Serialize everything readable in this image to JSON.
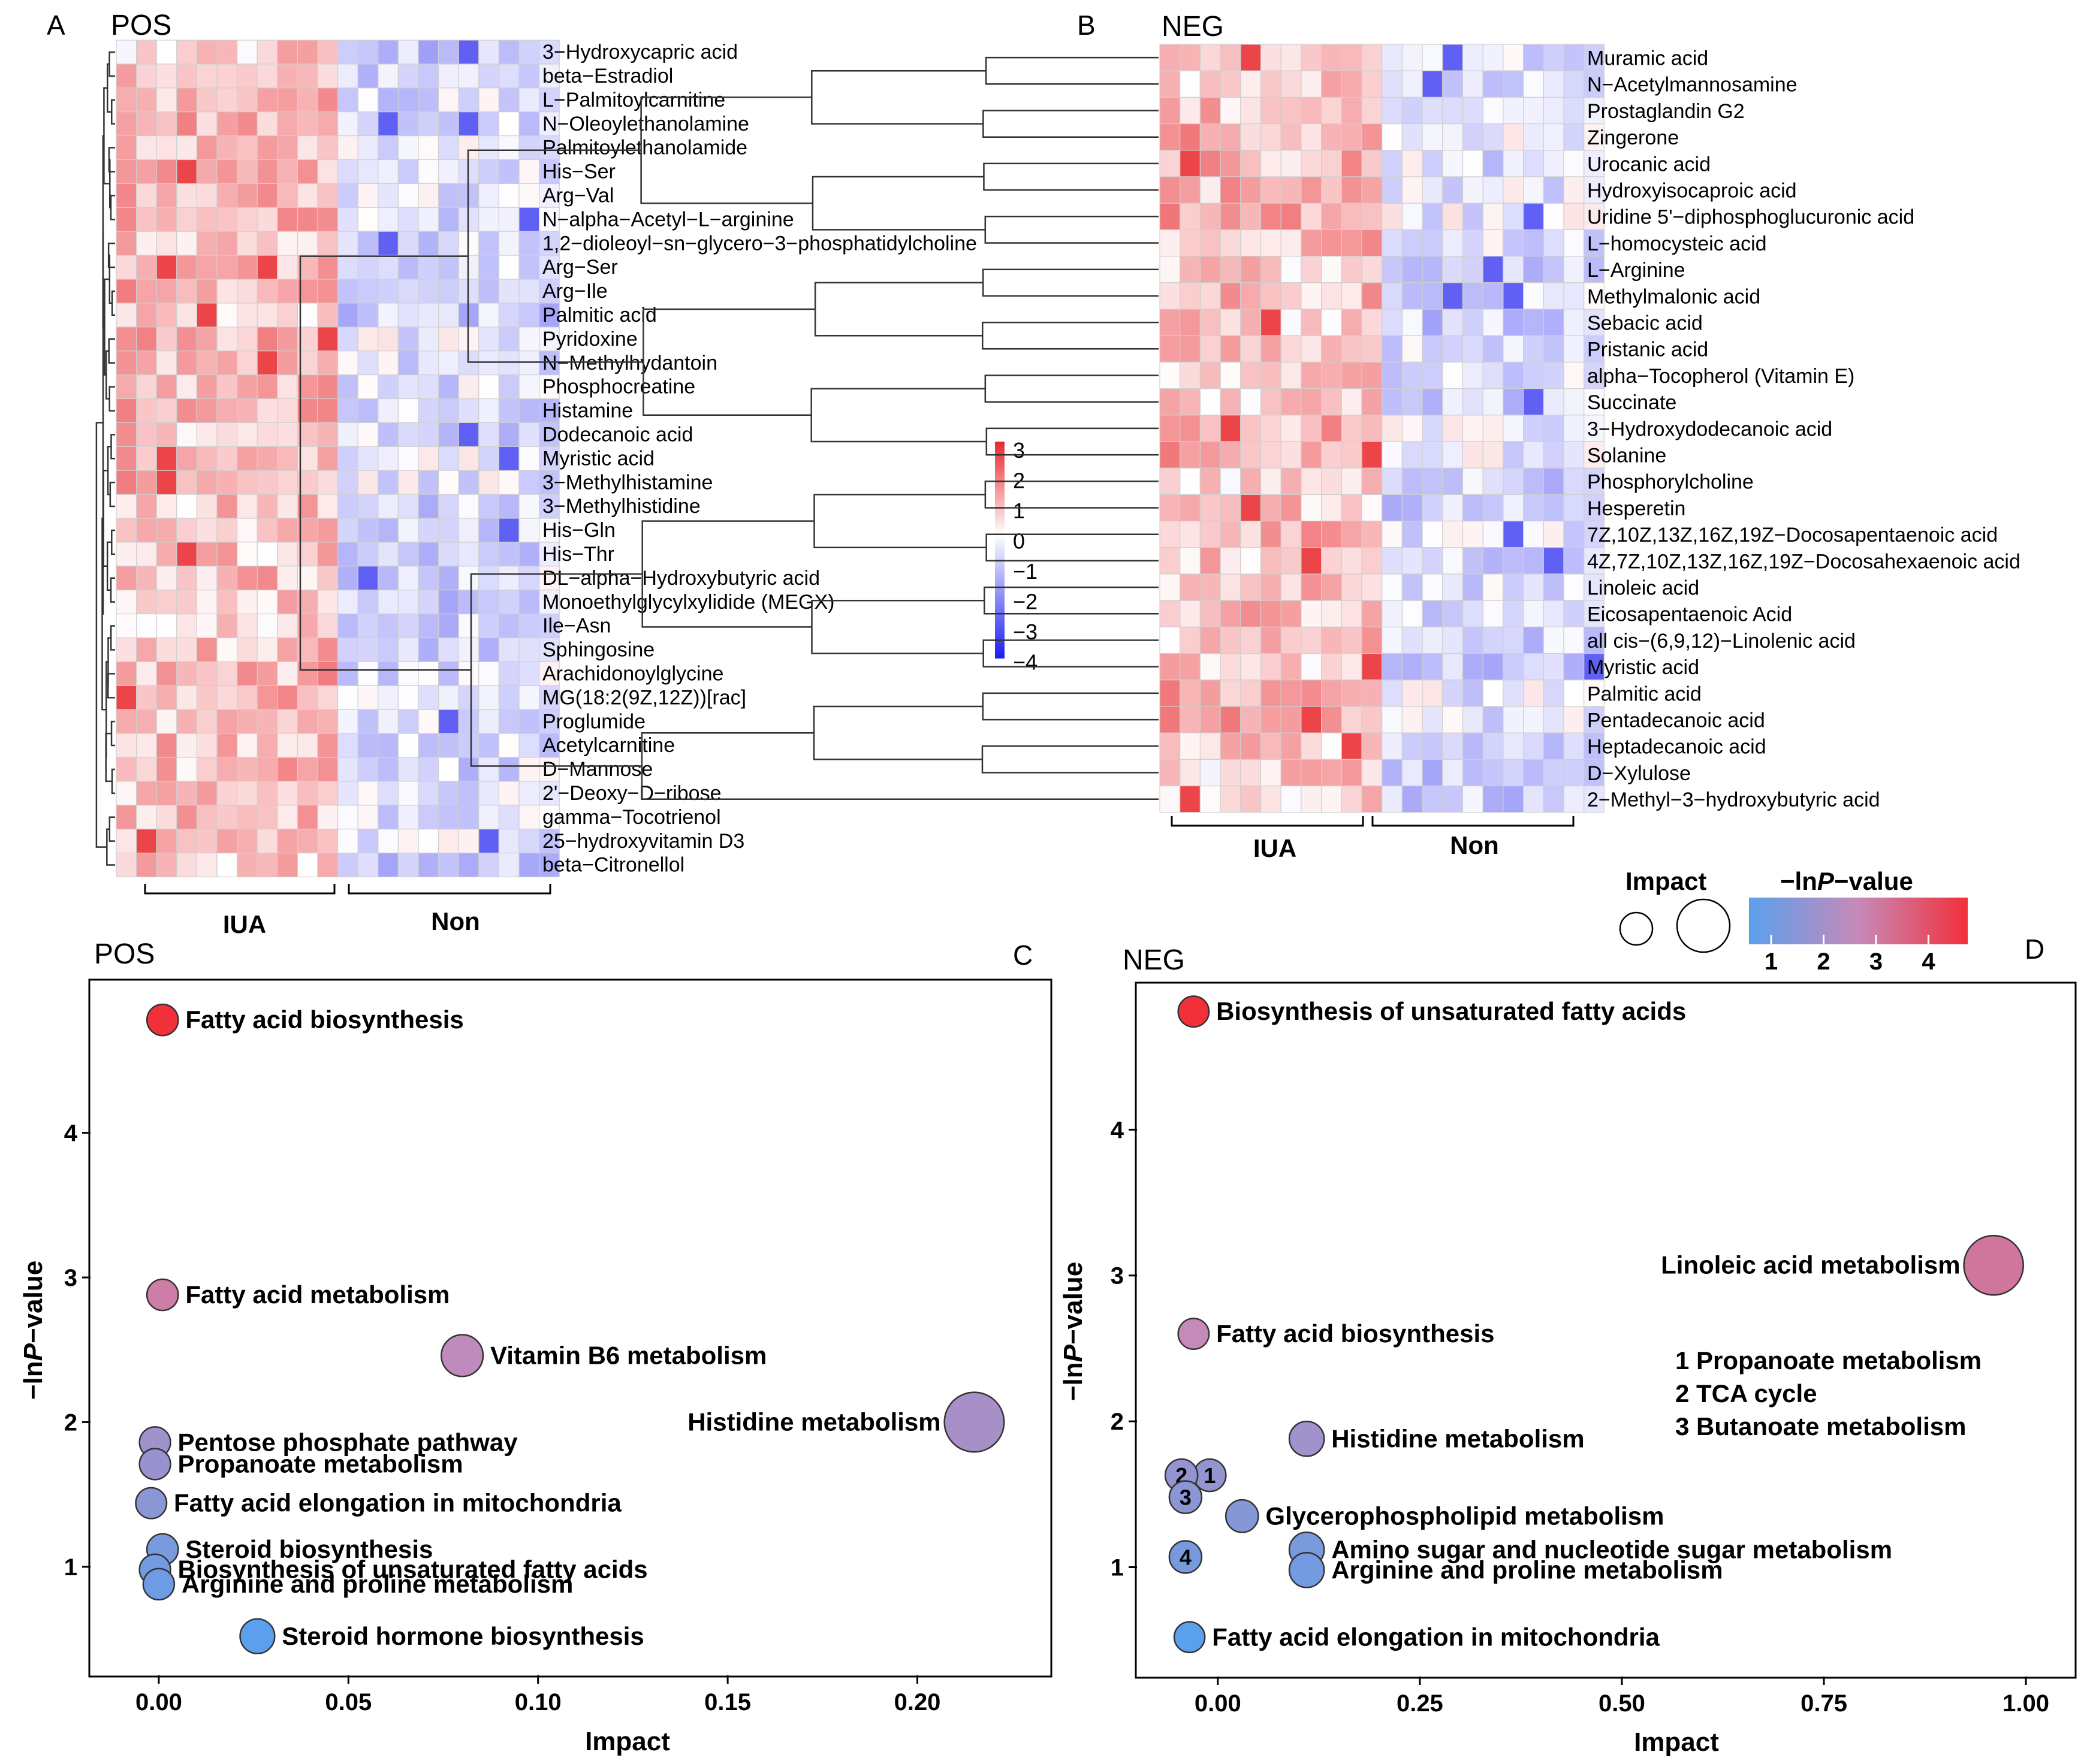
{
  "colors": {
    "heat_high": "#e8282d",
    "heat_mid": "#ffffff",
    "heat_low": "#1c1cf0",
    "bubble_low": "#5aa0ee",
    "bubble_high": "#f2303a"
  },
  "chart_data": [
    {
      "panel_letter": "A",
      "title": "POS",
      "type": "heatmap",
      "rows": [
        "3−Hydroxycapric acid",
        "beta−Estradiol",
        "L−Palmitoylcarnitine",
        "N−Oleoylethanolamine",
        "Palmitoylethanolamide",
        "His−Ser",
        "Arg−Val",
        "N−alpha−Acetyl−L−arginine",
        "1,2−dioleoyl−sn−glycero−3−phosphatidylcholine",
        "Arg−Ser",
        "Arg−Ile",
        "Palmitic acid",
        "Pyridoxine",
        "N−Methylhydantoin",
        "Phosphocreatine",
        "Histamine",
        "Dodecanoic acid",
        "Myristic acid",
        "3−Methylhistamine",
        "3−Methylhistidine",
        "His−Gln",
        "His−Thr",
        "DL−alpha−Hydroxybutyric acid",
        "Monoethylglycylxylidide (MEGX)",
        "Ile−Asn",
        "Sphingosine",
        "Arachidonoylglycine",
        "MG(18:2(9Z,12Z))[rac]",
        "Proglumide",
        "Acetylcarnitine",
        "D−Mannose",
        "2'−Deoxy−D−ribose",
        "gamma−Tocotrienol",
        "25−hydroxyvitamin D3",
        "beta−Citronellol"
      ],
      "groups": [
        {
          "label": "IUA",
          "samples": 11
        },
        {
          "label": "Non",
          "samples": 11
        }
      ],
      "color_scale": {
        "min": -4,
        "max": 3,
        "ticks": [
          "3",
          "2",
          "1",
          "0",
          "−1",
          "−2",
          "−3",
          "−4"
        ]
      }
    },
    {
      "panel_letter": "B",
      "title": "NEG",
      "type": "heatmap",
      "rows": [
        "Muramic acid",
        "N−Acetylmannosamine",
        "Prostaglandin G2",
        "Zingerone",
        "Urocanic acid",
        "Hydroxyisocaproic acid",
        "Uridine 5'−diphosphoglucuronic acid",
        "L−homocysteic acid",
        "L−Arginine",
        "Methylmalonic acid",
        "Sebacic acid",
        "Pristanic acid",
        "alpha−Tocopherol (Vitamin E)",
        "Succinate",
        "3−Hydroxydodecanoic acid",
        "Solanine",
        "Phosphorylcholine",
        "Hesperetin",
        "7Z,10Z,13Z,16Z,19Z−Docosapentaenoic acid",
        "4Z,7Z,10Z,13Z,16Z,19Z−Docosahexaenoic acid",
        "Linoleic acid",
        "Eicosapentaenoic Acid",
        "all cis−(6,9,12)−Linolenic acid",
        "Myristic acid",
        "Palmitic acid",
        "Pentadecanoic acid",
        "Heptadecanoic acid",
        "D−Xylulose",
        "2−Methyl−3−hydroxybutyric acid"
      ],
      "groups": [
        {
          "label": "IUA",
          "samples": 11
        },
        {
          "label": "Non",
          "samples": 11
        }
      ]
    },
    {
      "panel_letter": "C",
      "title": "POS",
      "type": "scatter",
      "xlabel": "Impact",
      "ylabel_prefix": "−ln",
      "ylabel_italic": "P",
      "ylabel_suffix": "−value",
      "xlim": [
        -0.018,
        0.235
      ],
      "ylim": [
        0.25,
        5.05
      ],
      "xticks": [
        "0.00",
        "0.05",
        "0.10",
        "0.15",
        "0.20"
      ],
      "xtick_values": [
        0,
        0.05,
        0.1,
        0.15,
        0.2
      ],
      "yticks": [
        "1",
        "2",
        "3",
        "4"
      ],
      "ytick_values": [
        1,
        2,
        3,
        4
      ],
      "points": [
        {
          "name": "Fatty acid biosynthesis",
          "impact": 0.001,
          "neglogp": 4.78,
          "label_side": "right"
        },
        {
          "name": "Fatty acid metabolism",
          "impact": 0.001,
          "neglogp": 2.88,
          "label_side": "right"
        },
        {
          "name": "Vitamin B6 metabolism",
          "impact": 0.08,
          "neglogp": 2.46,
          "label_side": "right"
        },
        {
          "name": "Histidine metabolism",
          "impact": 0.215,
          "neglogp": 2.0,
          "label_side": "left"
        },
        {
          "name": "Pentose phosphate pathway",
          "impact": -0.001,
          "neglogp": 1.86,
          "label_side": "right"
        },
        {
          "name": "Propanoate metabolism",
          "impact": -0.001,
          "neglogp": 1.71,
          "label_side": "right"
        },
        {
          "name": "Fatty acid elongation in mitochondria",
          "impact": -0.002,
          "neglogp": 1.44,
          "label_side": "right"
        },
        {
          "name": "Steroid biosynthesis",
          "impact": 0.001,
          "neglogp": 1.12,
          "label_side": "right"
        },
        {
          "name": "Biosynthesis of unsaturated fatty acids",
          "impact": -0.001,
          "neglogp": 0.98,
          "label_side": "right"
        },
        {
          "name": "Arginine and proline metabolism",
          "impact": 0.0,
          "neglogp": 0.88,
          "label_side": "right"
        },
        {
          "name": "Steroid hormone biosynthesis",
          "impact": 0.026,
          "neglogp": 0.52,
          "label_side": "right"
        }
      ]
    },
    {
      "panel_letter": "D",
      "title": "NEG",
      "type": "scatter",
      "xlabel": "Impact",
      "ylabel_prefix": "−ln",
      "ylabel_italic": "P",
      "ylabel_suffix": "−value",
      "xlim": [
        -0.1,
        1.06
      ],
      "ylim": [
        0.25,
        5.0
      ],
      "xticks": [
        "0.00",
        "0.25",
        "0.50",
        "0.75",
        "1.00"
      ],
      "xtick_values": [
        0,
        0.25,
        0.5,
        0.75,
        1.0
      ],
      "yticks": [
        "1",
        "2",
        "3",
        "4"
      ],
      "ytick_values": [
        1,
        2,
        3,
        4
      ],
      "points": [
        {
          "name": "Biosynthesis of unsaturated fatty acids",
          "impact": -0.03,
          "neglogp": 4.81,
          "label_side": "right"
        },
        {
          "name": "Linoleic acid metabolism",
          "impact": 0.96,
          "neglogp": 3.07,
          "label_side": "left"
        },
        {
          "name": "Fatty acid biosynthesis",
          "impact": -0.03,
          "neglogp": 2.6,
          "label_side": "right"
        },
        {
          "name": "Histidine metabolism",
          "impact": 0.11,
          "neglogp": 1.88,
          "label_side": "right"
        },
        {
          "name": "Propanoate metabolism",
          "impact": -0.01,
          "neglogp": 1.63,
          "marker": "1"
        },
        {
          "name": "TCA cycle",
          "impact": -0.045,
          "neglogp": 1.63,
          "marker": "2"
        },
        {
          "name": "Butanoate metabolism",
          "impact": -0.04,
          "neglogp": 1.48,
          "marker": "3"
        },
        {
          "name": "Glycerophospholipid metabolism",
          "impact": 0.03,
          "neglogp": 1.35,
          "label_side": "right"
        },
        {
          "name": "",
          "impact": -0.04,
          "neglogp": 1.07,
          "marker": "4"
        },
        {
          "name": "Amino sugar and nucleotide sugar metabolism",
          "impact": 0.11,
          "neglogp": 1.12,
          "label_side": "right"
        },
        {
          "name": "Arginine and proline metabolism",
          "impact": 0.11,
          "neglogp": 0.98,
          "label_side": "right"
        },
        {
          "name": "Fatty acid elongation in mitochondria",
          "impact": -0.035,
          "neglogp": 0.52,
          "label_side": "right"
        }
      ],
      "marker_key": [
        "1 Propanoate metabolism",
        "2 TCA cycle",
        "3 Butanoate metabolism"
      ]
    }
  ],
  "legend": {
    "impact_title": "Impact",
    "pvalue_prefix": "−ln",
    "pvalue_italic": "P",
    "pvalue_suffix": "−value",
    "pvalue_ticks": [
      "1",
      "2",
      "3",
      "4"
    ]
  }
}
